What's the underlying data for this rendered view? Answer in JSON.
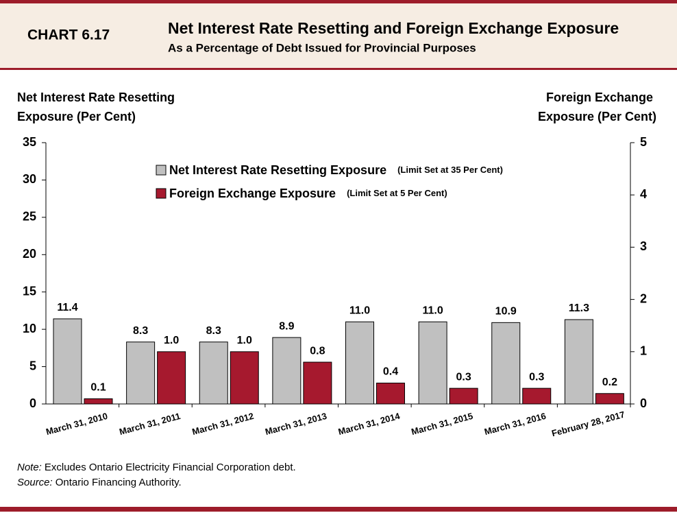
{
  "chart_data": {
    "type": "bar",
    "chart_number": "CHART 6.17",
    "title": "Net Interest Rate Resetting and Foreign Exchange Exposure",
    "subtitle": "As a Percentage of Debt Issued for Provincial Purposes",
    "y_label": [
      "Net Interest Rate Resetting",
      "Exposure (Per Cent)"
    ],
    "y2_label": [
      "Foreign Exchange",
      "Exposure (Per Cent)"
    ],
    "categories": [
      "March 31, 2010",
      "March 31, 2011",
      "March 31, 2012",
      "March 31, 2013",
      "March 31, 2014",
      "March 31, 2015",
      "March 31, 2016",
      "February 28, 2017"
    ],
    "series": [
      {
        "name": "Net Interest Rate Resetting Exposure",
        "limit_note": "(Limit Set at 35 Per Cent)",
        "color": "#c0c0c0",
        "values": [
          11.4,
          8.3,
          8.3,
          8.9,
          11.0,
          11.0,
          10.9,
          11.3
        ],
        "value_labels": [
          "11.4",
          "8.3",
          "8.3",
          "8.9",
          "11.0",
          "11.0",
          "10.9",
          "11.3"
        ]
      },
      {
        "name": "Foreign Exchange Exposure",
        "limit_note": "(Limit Set at 5 Per Cent)",
        "color": "#a6192e",
        "axis": "y2",
        "values": [
          0.1,
          1.0,
          1.0,
          0.8,
          0.4,
          0.3,
          0.3,
          0.2
        ],
        "value_labels": [
          "0.1",
          "1.0",
          "1.0",
          "0.8",
          "0.4",
          "0.3",
          "0.3",
          "0.2"
        ]
      }
    ],
    "ylim": [
      0,
      35
    ],
    "yticks": [
      0,
      5,
      10,
      15,
      20,
      25,
      30,
      35
    ],
    "y2lim": [
      0,
      5
    ],
    "y2ticks": [
      0,
      1,
      2,
      3,
      4,
      5
    ],
    "notes": [
      {
        "label": "Note:",
        "text": "Excludes Ontario Electricity  Financial Corporation debt."
      },
      {
        "label": "Source:",
        "text": "Ontario Financing Authority."
      }
    ]
  }
}
